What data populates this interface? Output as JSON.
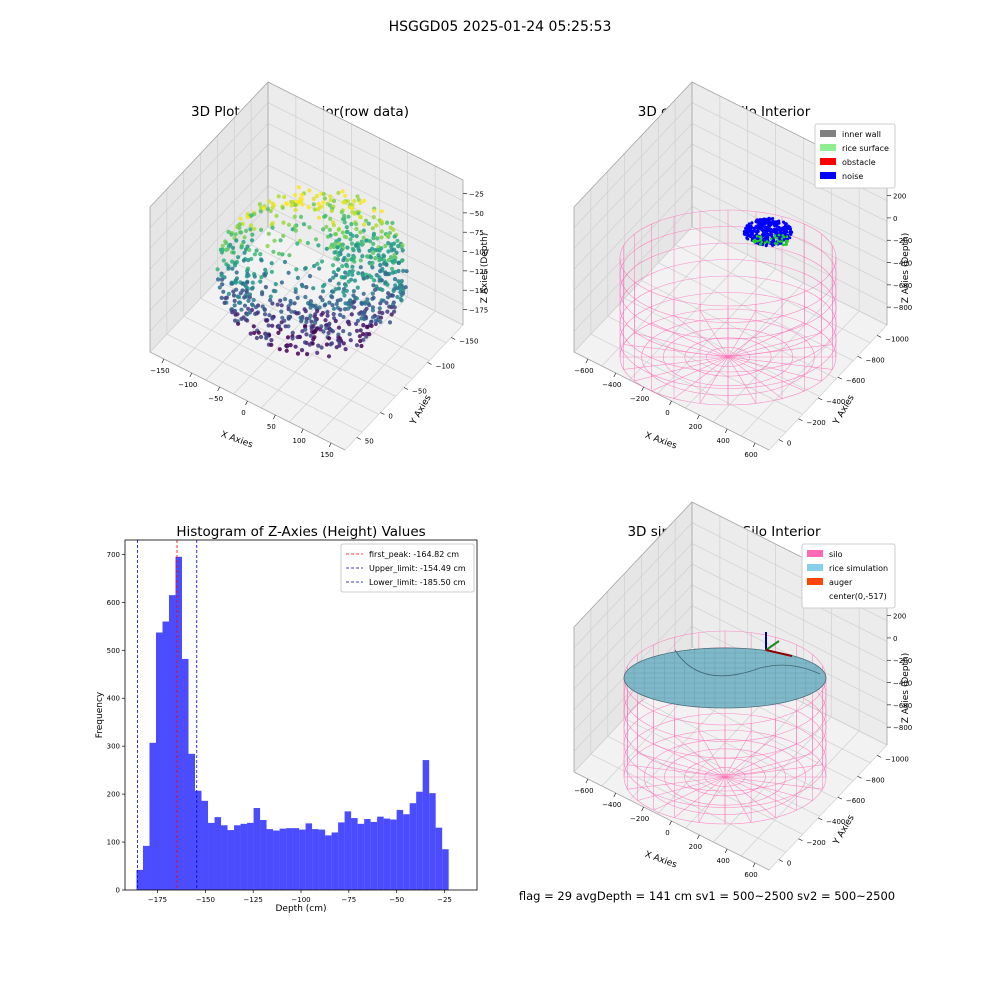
{
  "suptitle": "HSGGD05 2025-01-24 05:25:53",
  "footer": "flag = 29  avgDepth = 141 cm  sv1 = 500~2500  sv2 = 500~2500",
  "chart_data": [
    {
      "type": "scatter3d",
      "title": "3D Plot of Silo Interior(row data)",
      "xlabel": "X Axies",
      "ylabel": "Y Axies",
      "zlabel": "Z Axies (Depth)",
      "x_ticks": [
        "−150",
        "−100",
        "−50",
        "0",
        "50",
        "100",
        "150"
      ],
      "y_ticks": [
        "50",
        "0",
        "−50",
        "−100",
        "−150"
      ],
      "z_ticks": [
        "−25",
        "−50",
        "−75",
        "−100",
        "−125",
        "−150",
        "−175"
      ],
      "colormap": "viridis",
      "zlim": [
        -185,
        -12
      ]
    },
    {
      "type": "scatter3d",
      "title": "3D classify of Silo Interior",
      "xlabel": "X Axies",
      "ylabel": "Y Axies",
      "zlabel": "Z Axies (Depth)",
      "x_ticks": [
        "−600",
        "−400",
        "−200",
        "0",
        "200",
        "400",
        "600"
      ],
      "y_ticks": [
        "0",
        "−200",
        "−400",
        "−600",
        "−800",
        "−1000"
      ],
      "z_ticks": [
        "200",
        "0",
        "−200",
        "−400",
        "−600",
        "−800"
      ],
      "legend": [
        {
          "label": "inner wall",
          "color": "#808080"
        },
        {
          "label": "rice surface",
          "color": "#90ee90"
        },
        {
          "label": "obstacle",
          "color": "#ff0000"
        },
        {
          "label": "noise",
          "color": "#0000ff"
        }
      ],
      "legend_position": "top-right"
    },
    {
      "type": "bar",
      "title": "Histogram of Z-Axies (Height) Values",
      "xlabel": "Depth (cm)",
      "ylabel": "Frequency",
      "xlim": [
        -192,
        -8
      ],
      "ylim": [
        0,
        730
      ],
      "x_ticks": [
        -175,
        -150,
        -125,
        -100,
        -75,
        -50,
        -25
      ],
      "x_tick_labels": [
        "−175",
        "−150",
        "−125",
        "−100",
        "−75",
        "−50",
        "−25"
      ],
      "y_ticks": [
        0,
        100,
        200,
        300,
        400,
        500,
        600,
        700
      ],
      "y_tick_labels": [
        "0",
        "100",
        "200",
        "300",
        "400",
        "500",
        "600",
        "700"
      ],
      "bar_color": "#0000ff",
      "bin_start": -186,
      "bin_width": 3.4,
      "values": [
        42,
        92,
        307,
        537,
        560,
        615,
        695,
        482,
        284,
        207,
        186,
        140,
        152,
        135,
        125,
        135,
        138,
        140,
        171,
        146,
        127,
        124,
        128,
        129,
        129,
        126,
        139,
        127,
        126,
        114,
        120,
        141,
        164,
        150,
        138,
        148,
        142,
        153,
        149,
        147,
        167,
        158,
        181,
        205,
        271,
        202,
        130,
        85
      ],
      "lines": [
        {
          "label": "first_peak: -164.82 cm",
          "x": -164.82,
          "color": "#ff0000"
        },
        {
          "label": "Upper_limit: -154.49 cm",
          "x": -154.49,
          "color": "#0000cc"
        },
        {
          "label": "Lower_limit: -185.50 cm",
          "x": -185.5,
          "color": "#0000cc"
        }
      ],
      "legend_position": "top-right"
    },
    {
      "type": "surface3d",
      "title": "3D simulation of Silo Interior",
      "xlabel": "X Axies",
      "ylabel": "Y Axies",
      "zlabel": "Z Axies (Depth)",
      "x_ticks": [
        "−600",
        "−400",
        "−200",
        "0",
        "200",
        "400",
        "600"
      ],
      "y_ticks": [
        "0",
        "−200",
        "−400",
        "−600",
        "−800",
        "−1000"
      ],
      "z_ticks": [
        "200",
        "0",
        "−200",
        "−400",
        "−600",
        "−800"
      ],
      "legend": [
        {
          "label": "silo",
          "color": "#ff69b4"
        },
        {
          "label": "rice simulation",
          "color": "#87ceeb"
        },
        {
          "label": "auger",
          "color": "#ff4500"
        },
        {
          "label": "center(0,-517)",
          "color": "none"
        }
      ],
      "legend_position": "top-right"
    }
  ]
}
